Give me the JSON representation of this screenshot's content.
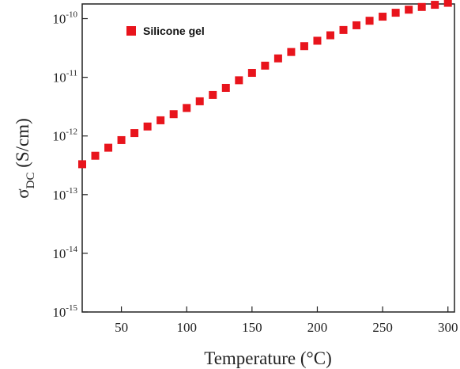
{
  "chart_data": {
    "type": "scatter",
    "xlabel": "Temperature (°C)",
    "ylabel": {
      "main": "σ",
      "sub": "DC",
      "unit": " (S/cm)"
    },
    "xlim": [
      20,
      305
    ],
    "ylim_log10": [
      -15,
      -9.75
    ],
    "y_scale": "log",
    "grid": false,
    "legend_position": "top-left",
    "x_ticks": [
      {
        "value": 50,
        "label": "50"
      },
      {
        "value": 100,
        "label": "100"
      },
      {
        "value": 150,
        "label": "150"
      },
      {
        "value": 200,
        "label": "200"
      },
      {
        "value": 250,
        "label": "250"
      },
      {
        "value": 300,
        "label": "300"
      }
    ],
    "y_ticks": [
      {
        "exp": -10,
        "base": "10",
        "sup": "-10"
      },
      {
        "exp": -11,
        "base": "10",
        "sup": "-11"
      },
      {
        "exp": -12,
        "base": "10",
        "sup": "-12"
      },
      {
        "exp": -13,
        "base": "10",
        "sup": "-13"
      },
      {
        "exp": -14,
        "base": "10",
        "sup": "-14"
      },
      {
        "exp": -15,
        "base": "10",
        "sup": "-15"
      }
    ],
    "series": [
      {
        "name": "Silicone gel",
        "color": "#e8141c",
        "marker": "square",
        "x": [
          20,
          30,
          40,
          50,
          60,
          70,
          80,
          90,
          100,
          110,
          120,
          130,
          140,
          150,
          160,
          170,
          180,
          190,
          200,
          210,
          220,
          230,
          240,
          250,
          260,
          270,
          280,
          290,
          300
        ],
        "y": [
          3.3e-13,
          4.6e-13,
          6.3e-13,
          8.5e-13,
          1.12e-12,
          1.45e-12,
          1.85e-12,
          2.35e-12,
          3e-12,
          3.9e-12,
          5e-12,
          6.6e-12,
          8.9e-12,
          1.19e-11,
          1.58e-11,
          2.1e-11,
          2.7e-11,
          3.4e-11,
          4.2e-11,
          5.2e-11,
          6.4e-11,
          7.7e-11,
          9.2e-11,
          1.08e-10,
          1.26e-10,
          1.42e-10,
          1.58e-10,
          1.72e-10,
          1.86e-10
        ]
      }
    ]
  }
}
